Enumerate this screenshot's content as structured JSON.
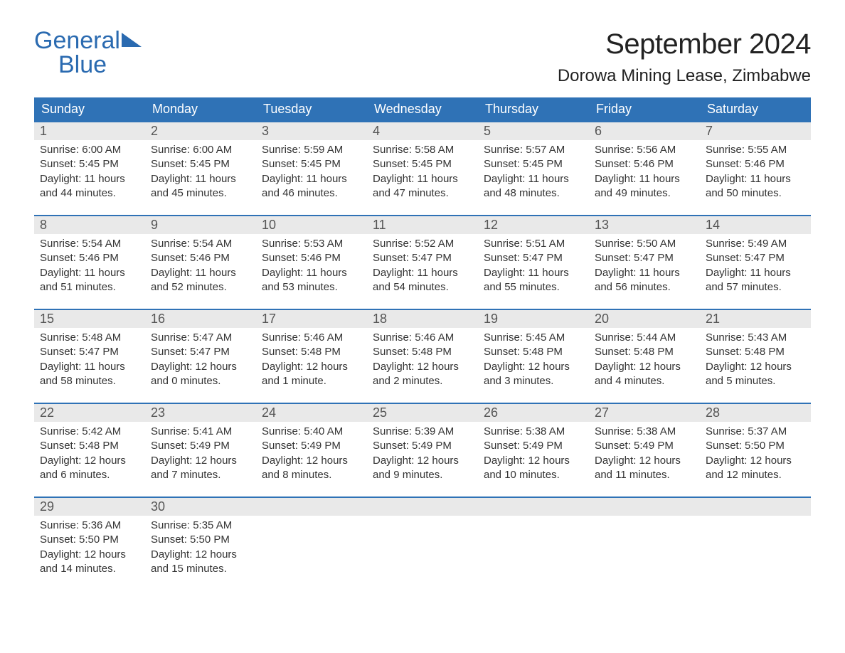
{
  "brand": {
    "line1": "General",
    "line2": "Blue"
  },
  "title": "September 2024",
  "location": "Dorowa Mining Lease, Zimbabwe",
  "colors": {
    "accent": "#2f72b6",
    "logo": "#2a6ab0",
    "daynum_bg": "#e9e9e9",
    "text": "#333333",
    "background": "#ffffff"
  },
  "fonts": {
    "title_size_pt": 30,
    "location_size_pt": 18,
    "dow_size_pt": 14,
    "body_size_pt": 11
  },
  "daysOfWeek": [
    "Sunday",
    "Monday",
    "Tuesday",
    "Wednesday",
    "Thursday",
    "Friday",
    "Saturday"
  ],
  "labels": {
    "sunrise": "Sunrise:",
    "sunset": "Sunset:",
    "daylight": "Daylight:"
  },
  "weeks": [
    [
      {
        "n": "1",
        "sunrise": "6:00 AM",
        "sunset": "5:45 PM",
        "daylight": "11 hours and 44 minutes."
      },
      {
        "n": "2",
        "sunrise": "6:00 AM",
        "sunset": "5:45 PM",
        "daylight": "11 hours and 45 minutes."
      },
      {
        "n": "3",
        "sunrise": "5:59 AM",
        "sunset": "5:45 PM",
        "daylight": "11 hours and 46 minutes."
      },
      {
        "n": "4",
        "sunrise": "5:58 AM",
        "sunset": "5:45 PM",
        "daylight": "11 hours and 47 minutes."
      },
      {
        "n": "5",
        "sunrise": "5:57 AM",
        "sunset": "5:45 PM",
        "daylight": "11 hours and 48 minutes."
      },
      {
        "n": "6",
        "sunrise": "5:56 AM",
        "sunset": "5:46 PM",
        "daylight": "11 hours and 49 minutes."
      },
      {
        "n": "7",
        "sunrise": "5:55 AM",
        "sunset": "5:46 PM",
        "daylight": "11 hours and 50 minutes."
      }
    ],
    [
      {
        "n": "8",
        "sunrise": "5:54 AM",
        "sunset": "5:46 PM",
        "daylight": "11 hours and 51 minutes."
      },
      {
        "n": "9",
        "sunrise": "5:54 AM",
        "sunset": "5:46 PM",
        "daylight": "11 hours and 52 minutes."
      },
      {
        "n": "10",
        "sunrise": "5:53 AM",
        "sunset": "5:46 PM",
        "daylight": "11 hours and 53 minutes."
      },
      {
        "n": "11",
        "sunrise": "5:52 AM",
        "sunset": "5:47 PM",
        "daylight": "11 hours and 54 minutes."
      },
      {
        "n": "12",
        "sunrise": "5:51 AM",
        "sunset": "5:47 PM",
        "daylight": "11 hours and 55 minutes."
      },
      {
        "n": "13",
        "sunrise": "5:50 AM",
        "sunset": "5:47 PM",
        "daylight": "11 hours and 56 minutes."
      },
      {
        "n": "14",
        "sunrise": "5:49 AM",
        "sunset": "5:47 PM",
        "daylight": "11 hours and 57 minutes."
      }
    ],
    [
      {
        "n": "15",
        "sunrise": "5:48 AM",
        "sunset": "5:47 PM",
        "daylight": "11 hours and 58 minutes."
      },
      {
        "n": "16",
        "sunrise": "5:47 AM",
        "sunset": "5:47 PM",
        "daylight": "12 hours and 0 minutes."
      },
      {
        "n": "17",
        "sunrise": "5:46 AM",
        "sunset": "5:48 PM",
        "daylight": "12 hours and 1 minute."
      },
      {
        "n": "18",
        "sunrise": "5:46 AM",
        "sunset": "5:48 PM",
        "daylight": "12 hours and 2 minutes."
      },
      {
        "n": "19",
        "sunrise": "5:45 AM",
        "sunset": "5:48 PM",
        "daylight": "12 hours and 3 minutes."
      },
      {
        "n": "20",
        "sunrise": "5:44 AM",
        "sunset": "5:48 PM",
        "daylight": "12 hours and 4 minutes."
      },
      {
        "n": "21",
        "sunrise": "5:43 AM",
        "sunset": "5:48 PM",
        "daylight": "12 hours and 5 minutes."
      }
    ],
    [
      {
        "n": "22",
        "sunrise": "5:42 AM",
        "sunset": "5:48 PM",
        "daylight": "12 hours and 6 minutes."
      },
      {
        "n": "23",
        "sunrise": "5:41 AM",
        "sunset": "5:49 PM",
        "daylight": "12 hours and 7 minutes."
      },
      {
        "n": "24",
        "sunrise": "5:40 AM",
        "sunset": "5:49 PM",
        "daylight": "12 hours and 8 minutes."
      },
      {
        "n": "25",
        "sunrise": "5:39 AM",
        "sunset": "5:49 PM",
        "daylight": "12 hours and 9 minutes."
      },
      {
        "n": "26",
        "sunrise": "5:38 AM",
        "sunset": "5:49 PM",
        "daylight": "12 hours and 10 minutes."
      },
      {
        "n": "27",
        "sunrise": "5:38 AM",
        "sunset": "5:49 PM",
        "daylight": "12 hours and 11 minutes."
      },
      {
        "n": "28",
        "sunrise": "5:37 AM",
        "sunset": "5:50 PM",
        "daylight": "12 hours and 12 minutes."
      }
    ],
    [
      {
        "n": "29",
        "sunrise": "5:36 AM",
        "sunset": "5:50 PM",
        "daylight": "12 hours and 14 minutes."
      },
      {
        "n": "30",
        "sunrise": "5:35 AM",
        "sunset": "5:50 PM",
        "daylight": "12 hours and 15 minutes."
      },
      {
        "empty": true
      },
      {
        "empty": true
      },
      {
        "empty": true
      },
      {
        "empty": true
      },
      {
        "empty": true
      }
    ]
  ]
}
